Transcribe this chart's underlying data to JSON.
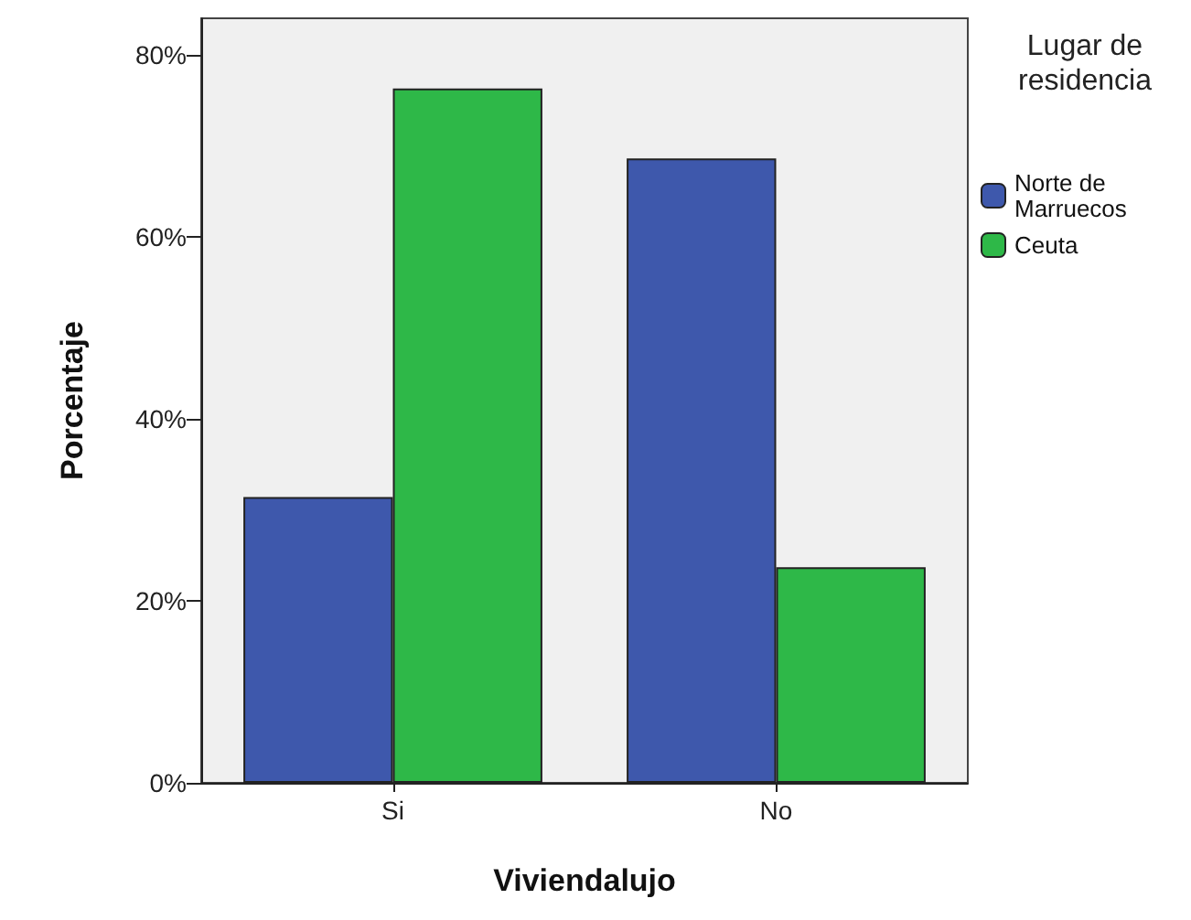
{
  "chart_data": {
    "type": "bar",
    "xlabel": "Viviendalujo",
    "ylabel": "Porcentaje",
    "legend_title": "Lugar de residencia",
    "categories": [
      "Si",
      "No"
    ],
    "series": [
      {
        "name": "Norte de Marruecos",
        "color": "#3e58ac",
        "values": [
          31.4,
          68.6
        ]
      },
      {
        "name": "Ceuta",
        "color": "#2eb848",
        "values": [
          76.3,
          23.7
        ]
      }
    ],
    "ylim": [
      0,
      84
    ],
    "yticks": [
      {
        "value": 0,
        "label": "0%"
      },
      {
        "value": 20,
        "label": "20%"
      },
      {
        "value": 40,
        "label": "40%"
      },
      {
        "value": 60,
        "label": "60%"
      },
      {
        "value": 80,
        "label": "80%"
      }
    ],
    "grid": false,
    "legend": "right"
  }
}
